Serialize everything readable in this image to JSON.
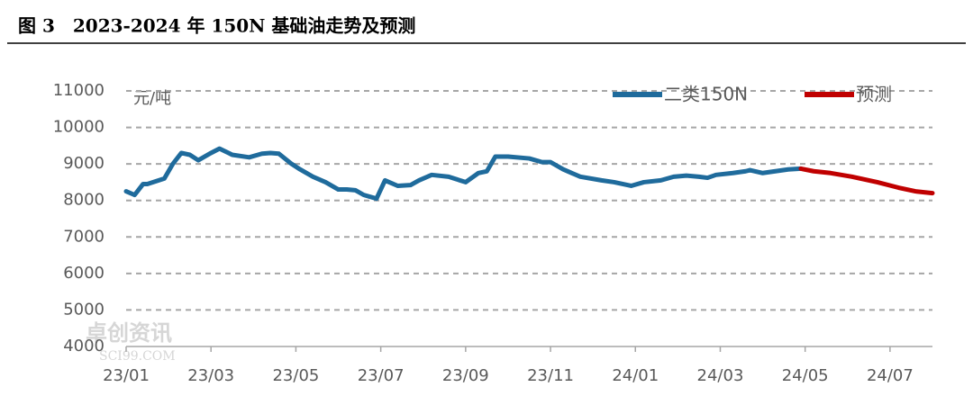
{
  "chart_data": {
    "type": "line",
    "title": "图 3　2023-2024 年 150N 基础油走势及预测",
    "y_unit": "元/吨",
    "watermark": [
      "卓创资讯",
      "SCI99.COM"
    ],
    "xlim": [
      0,
      19
    ],
    "xticks": [
      {
        "value": 0,
        "label": "23/01"
      },
      {
        "value": 2,
        "label": "23/03"
      },
      {
        "value": 4,
        "label": "23/05"
      },
      {
        "value": 6,
        "label": "23/07"
      },
      {
        "value": 8,
        "label": "23/09"
      },
      {
        "value": 10,
        "label": "23/11"
      },
      {
        "value": 12,
        "label": "24/01"
      },
      {
        "value": 14,
        "label": "24/03"
      },
      {
        "value": 16,
        "label": "24/05"
      },
      {
        "value": 18,
        "label": "24/07"
      }
    ],
    "ylim": [
      4000,
      11000
    ],
    "yticks": [
      4000,
      5000,
      6000,
      7000,
      8000,
      9000,
      10000,
      11000
    ],
    "grid": true,
    "legend": "top-right",
    "series": [
      {
        "name": "二类150N",
        "color": "#1f6b9c",
        "x": [
          0,
          0.2,
          0.4,
          0.5,
          0.9,
          1.1,
          1.3,
          1.5,
          1.7,
          2.0,
          2.2,
          2.5,
          2.9,
          3.2,
          3.4,
          3.6,
          3.9,
          4.1,
          4.4,
          4.7,
          5.0,
          5.2,
          5.4,
          5.6,
          5.9,
          6.1,
          6.4,
          6.7,
          6.9,
          7.2,
          7.6,
          8.0,
          8.3,
          8.5,
          8.7,
          9.0,
          9.5,
          9.8,
          10.0,
          10.3,
          10.7,
          11.2,
          11.5,
          11.9,
          12.2,
          12.6,
          12.9,
          13.2,
          13.5,
          13.7,
          13.9,
          14.3,
          14.6,
          14.7,
          15.0,
          15.3,
          15.6,
          15.9
        ],
        "values": [
          8250,
          8150,
          8450,
          8450,
          8600,
          9000,
          9300,
          9250,
          9100,
          9300,
          9420,
          9250,
          9180,
          9280,
          9300,
          9280,
          9000,
          8850,
          8650,
          8500,
          8300,
          8300,
          8280,
          8150,
          8050,
          8550,
          8400,
          8420,
          8550,
          8700,
          8650,
          8500,
          8750,
          8800,
          9200,
          9200,
          9150,
          9050,
          9050,
          8850,
          8650,
          8550,
          8500,
          8400,
          8500,
          8550,
          8650,
          8680,
          8650,
          8620,
          8700,
          8750,
          8800,
          8830,
          8750,
          8800,
          8850,
          8870
        ]
      },
      {
        "name": "预测",
        "color": "#c00000",
        "x": [
          15.9,
          16.2,
          16.6,
          17.1,
          17.7,
          18.2,
          18.6,
          19.0
        ],
        "values": [
          8870,
          8800,
          8750,
          8650,
          8500,
          8350,
          8250,
          8200
        ]
      }
    ]
  }
}
